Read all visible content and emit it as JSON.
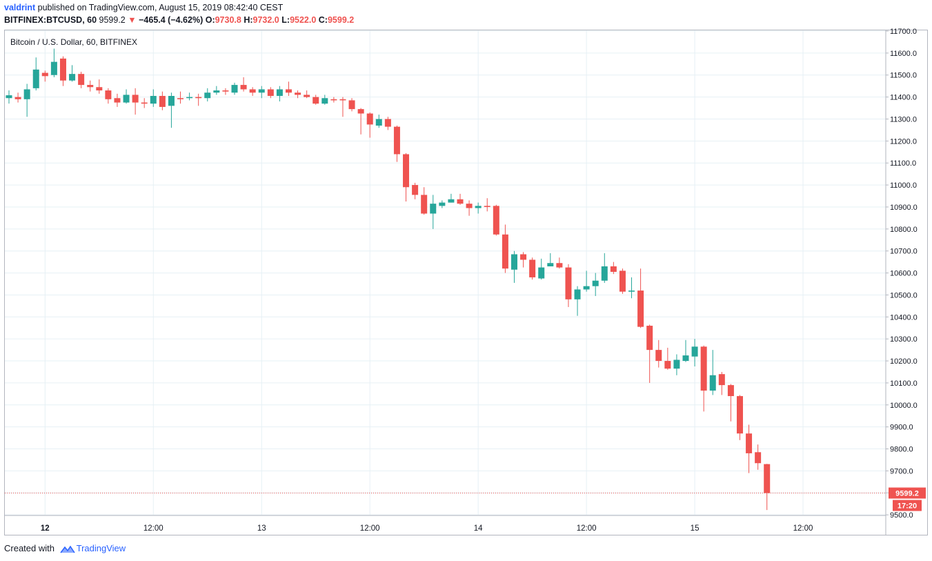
{
  "header": {
    "author": "valdrint",
    "publish_text": "published on TradingView.com, August 15, 2019 08:42:40 CEST",
    "symbol": "BITFINEX:BTCUSD, 60",
    "last_price": "9599.2",
    "change_arrow": "▼",
    "change": "−465.4 (−4.62%)",
    "o_label": "O:",
    "o_value": "9730.8",
    "h_label": "H:",
    "h_value": "9732.0",
    "l_label": "L:",
    "l_value": "9522.0",
    "c_label": "C:",
    "c_value": "9599.2"
  },
  "footer": {
    "created_with": "Created with",
    "brand": "TradingView"
  },
  "colors": {
    "up": "#26a69a",
    "down": "#ef5350",
    "grid": "#e6f0f5",
    "axis_text": "#131722"
  },
  "chart_data": {
    "type": "candlestick",
    "title": "Bitcoin / U.S. Dollar, 60, BITFINEX",
    "ylim": [
      9470,
      11730
    ],
    "y_ticks": [
      "11700.0",
      "11600.0",
      "11500.0",
      "11400.0",
      "11300.0",
      "11200.0",
      "11100.0",
      "11000.0",
      "10900.0",
      "10800.0",
      "10700.0",
      "10600.0",
      "10500.0",
      "10400.0",
      "10300.0",
      "10200.0",
      "10100.0",
      "10000.0",
      "9900.0",
      "9800.0",
      "9700.0",
      "9600.0",
      "9500.0"
    ],
    "x_tick_labels": [
      {
        "label": "12",
        "index": 4,
        "bold": true
      },
      {
        "label": "12:00",
        "index": 16,
        "bold": false
      },
      {
        "label": "13",
        "index": 28,
        "bold": false
      },
      {
        "label": "12:00",
        "index": 40,
        "bold": false
      },
      {
        "label": "14",
        "index": 52,
        "bold": false
      },
      {
        "label": "12:00",
        "index": 64,
        "bold": false
      },
      {
        "label": "15",
        "index": 76,
        "bold": false
      },
      {
        "label": "12:00",
        "index": 88,
        "bold": false
      }
    ],
    "last_price_label": "9599.2",
    "countdown_label": "17:20",
    "last_price": 9599.2,
    "candles": [
      [
        11395,
        11408,
        11430,
        11370
      ],
      [
        11400,
        11390,
        11420,
        11375
      ],
      [
        11390,
        11435,
        11460,
        11310
      ],
      [
        11440,
        11525,
        11580,
        11430
      ],
      [
        11510,
        11495,
        11520,
        11470
      ],
      [
        11500,
        11560,
        11620,
        11490
      ],
      [
        11575,
        11475,
        11585,
        11450
      ],
      [
        11475,
        11505,
        11545,
        11470
      ],
      [
        11505,
        11455,
        11515,
        11440
      ],
      [
        11455,
        11445,
        11475,
        11425
      ],
      [
        11445,
        11430,
        11480,
        11415
      ],
      [
        11430,
        11390,
        11440,
        11370
      ],
      [
        11395,
        11375,
        11415,
        11355
      ],
      [
        11375,
        11410,
        11435,
        11370
      ],
      [
        11410,
        11375,
        11440,
        11320
      ],
      [
        11375,
        11370,
        11395,
        11350
      ],
      [
        11370,
        11405,
        11435,
        11355
      ],
      [
        11405,
        11355,
        11425,
        11340
      ],
      [
        11360,
        11405,
        11420,
        11260
      ],
      [
        11395,
        11390,
        11425,
        11370
      ],
      [
        11395,
        11400,
        11420,
        11385
      ],
      [
        11400,
        11395,
        11415,
        11360
      ],
      [
        11395,
        11420,
        11440,
        11380
      ],
      [
        11420,
        11430,
        11450,
        11410
      ],
      [
        11430,
        11425,
        11440,
        11410
      ],
      [
        11420,
        11455,
        11465,
        11410
      ],
      [
        11455,
        11435,
        11490,
        11425
      ],
      [
        11435,
        11420,
        11445,
        11405
      ],
      [
        11420,
        11435,
        11450,
        11395
      ],
      [
        11435,
        11405,
        11445,
        11395
      ],
      [
        11405,
        11435,
        11450,
        11380
      ],
      [
        11435,
        11420,
        11470,
        11405
      ],
      [
        11420,
        11410,
        11430,
        11395
      ],
      [
        11410,
        11400,
        11430,
        11395
      ],
      [
        11400,
        11370,
        11410,
        11365
      ],
      [
        11370,
        11395,
        11410,
        11365
      ],
      [
        11390,
        11385,
        11400,
        11375
      ],
      [
        11390,
        11385,
        11400,
        11310
      ],
      [
        11385,
        11345,
        11395,
        11335
      ],
      [
        11345,
        11325,
        11350,
        11230
      ],
      [
        11325,
        11275,
        11330,
        11215
      ],
      [
        11270,
        11300,
        11320,
        11260
      ],
      [
        11300,
        11265,
        11310,
        11250
      ],
      [
        11265,
        11140,
        11270,
        11105
      ],
      [
        11140,
        10990,
        11145,
        10925
      ],
      [
        11000,
        10955,
        11010,
        10935
      ],
      [
        10955,
        10870,
        10990,
        10865
      ],
      [
        10870,
        10915,
        10955,
        10800
      ],
      [
        10905,
        10920,
        10930,
        10895
      ],
      [
        10920,
        10935,
        10960,
        10920
      ],
      [
        10935,
        10915,
        10960,
        10910
      ],
      [
        10915,
        10895,
        10930,
        10860
      ],
      [
        10895,
        10905,
        10920,
        10870
      ],
      [
        10905,
        10900,
        10940,
        10880
      ],
      [
        10905,
        10775,
        10910,
        10770
      ],
      [
        10775,
        10620,
        10820,
        10600
      ],
      [
        10615,
        10685,
        10700,
        10555
      ],
      [
        10685,
        10660,
        10695,
        10625
      ],
      [
        10660,
        10580,
        10670,
        10570
      ],
      [
        10575,
        10625,
        10665,
        10570
      ],
      [
        10630,
        10645,
        10690,
        10630
      ],
      [
        10645,
        10625,
        10670,
        10620
      ],
      [
        10625,
        10480,
        10640,
        10445
      ],
      [
        10480,
        10525,
        10540,
        10405
      ],
      [
        10525,
        10540,
        10610,
        10515
      ],
      [
        10540,
        10565,
        10600,
        10495
      ],
      [
        10565,
        10630,
        10690,
        10555
      ],
      [
        10630,
        10605,
        10650,
        10595
      ],
      [
        10610,
        10515,
        10620,
        10505
      ],
      [
        10515,
        10520,
        10580,
        10485
      ],
      [
        10520,
        10355,
        10620,
        10350
      ],
      [
        10360,
        10250,
        10365,
        10100
      ],
      [
        10250,
        10200,
        10295,
        10170
      ],
      [
        10200,
        10165,
        10260,
        10160
      ],
      [
        10165,
        10205,
        10230,
        10135
      ],
      [
        10200,
        10225,
        10295,
        10195
      ],
      [
        10220,
        10265,
        10300,
        10175
      ],
      [
        10265,
        10065,
        10270,
        9970
      ],
      [
        10065,
        10135,
        10250,
        10045
      ],
      [
        10140,
        10090,
        10150,
        10045
      ],
      [
        10090,
        10040,
        10095,
        9925
      ],
      [
        10040,
        9870,
        10045,
        9840
      ],
      [
        9870,
        9780,
        9910,
        9690
      ],
      [
        9785,
        9735,
        9820,
        9705
      ],
      [
        9730.8,
        9599.2,
        9732.0,
        9522.0
      ]
    ]
  }
}
